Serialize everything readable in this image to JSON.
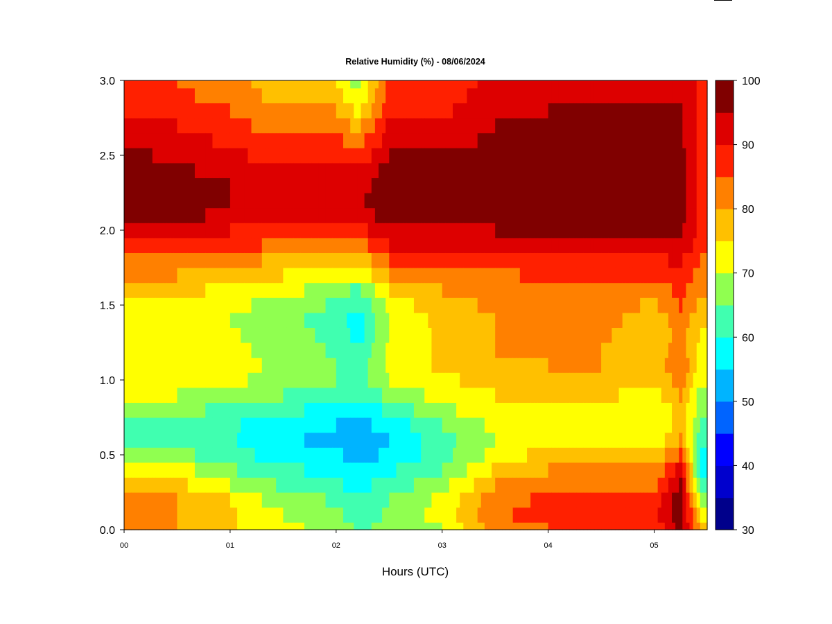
{
  "chart_data": {
    "type": "heatmap",
    "subtype": "filled-contour",
    "title": "Relative Humidity (%) - 08/06/2024",
    "xlabel": "Hours (UTC)",
    "ylabel": "",
    "x_unit": "hours",
    "xlim": [
      0,
      5.5
    ],
    "ylim": [
      0.0,
      3.0
    ],
    "x_ticks": [
      {
        "value": 0,
        "label": "00"
      },
      {
        "value": 1,
        "label": "01"
      },
      {
        "value": 2,
        "label": "02"
      },
      {
        "value": 3,
        "label": "03"
      },
      {
        "value": 4,
        "label": "04"
      },
      {
        "value": 5,
        "label": "05"
      }
    ],
    "y_ticks": [
      {
        "value": 0.0,
        "label": "0.0"
      },
      {
        "value": 0.5,
        "label": "0.5"
      },
      {
        "value": 1.0,
        "label": "1.0"
      },
      {
        "value": 1.5,
        "label": "1.5"
      },
      {
        "value": 2.0,
        "label": "2.0"
      },
      {
        "value": 2.5,
        "label": "2.5"
      },
      {
        "value": 3.0,
        "label": "3.0"
      }
    ],
    "colorbar": {
      "levels": [
        30,
        35,
        40,
        45,
        50,
        55,
        60,
        65,
        70,
        75,
        80,
        85,
        90,
        95,
        100
      ],
      "colors": [
        "#00008b",
        "#0000cd",
        "#0000ff",
        "#0064ff",
        "#00b4ff",
        "#00ffff",
        "#40ffb0",
        "#90ff50",
        "#ffff00",
        "#ffc000",
        "#ff8000",
        "#ff2000",
        "#dd0000",
        "#800000"
      ],
      "tick_labels": [
        {
          "value": 30,
          "label": "30"
        },
        {
          "value": 40,
          "label": "40"
        },
        {
          "value": 50,
          "label": "50"
        },
        {
          "value": 60,
          "label": "60"
        },
        {
          "value": 70,
          "label": "70"
        },
        {
          "value": 80,
          "label": "80"
        },
        {
          "value": 90,
          "label": "90"
        },
        {
          "value": 100,
          "label": "100"
        }
      ]
    },
    "profile_heights_km": [
      0.0,
      0.1,
      0.2,
      0.3,
      0.4,
      0.5,
      0.6,
      0.7,
      0.8,
      0.9,
      1.0,
      1.1,
      1.2,
      1.3,
      1.4,
      1.5,
      1.6,
      1.7,
      1.8,
      1.9,
      2.0,
      2.1,
      2.2,
      2.3,
      2.4,
      2.5,
      2.6,
      2.7,
      2.8,
      2.9,
      3.0
    ],
    "profiles": [
      {
        "hour": 0.0,
        "rh": [
          80,
          80,
          80,
          76,
          72,
          68,
          64,
          64,
          66,
          70,
          73,
          74,
          74,
          73,
          73,
          74,
          77,
          80,
          84,
          88,
          94,
          97,
          97,
          97,
          97,
          96,
          95,
          93,
          90,
          88,
          87
        ]
      },
      {
        "hour": 0.5,
        "rh": [
          80,
          80,
          80,
          76,
          72,
          66,
          63,
          63,
          66,
          70,
          72,
          73,
          73,
          72,
          72,
          73,
          76,
          80,
          84,
          88,
          93,
          96,
          97,
          97,
          96,
          94,
          92,
          90,
          88,
          86,
          85
        ]
      },
      {
        "hour": 1.0,
        "rh": [
          76,
          76,
          75,
          70,
          66,
          63,
          61,
          61,
          64,
          68,
          71,
          72,
          72,
          71,
          70,
          72,
          74,
          78,
          82,
          86,
          90,
          94,
          95,
          95,
          93,
          91,
          89,
          87,
          85,
          83,
          82
        ]
      },
      {
        "hour": 1.3,
        "rh": [
          72,
          71,
          70,
          66,
          62,
          59,
          57,
          58,
          62,
          66,
          69,
          70,
          69,
          68,
          67,
          69,
          72,
          76,
          80,
          85,
          89,
          93,
          94,
          93,
          91,
          89,
          86,
          84,
          82,
          80,
          79
        ]
      },
      {
        "hour": 1.7,
        "rh": [
          70,
          69,
          67,
          63,
          60,
          57,
          55,
          56,
          60,
          64,
          67,
          68,
          67,
          66,
          65,
          67,
          70,
          74,
          79,
          84,
          89,
          93,
          94,
          93,
          91,
          88,
          85,
          83,
          80,
          78,
          77
        ]
      },
      {
        "hour": 2.0,
        "rh": [
          68,
          67,
          64,
          61,
          58,
          56,
          54,
          55,
          58,
          62,
          65,
          65,
          64,
          63,
          62,
          64,
          67,
          72,
          78,
          83,
          89,
          93,
          95,
          94,
          92,
          89,
          86,
          83,
          80,
          77,
          75
        ]
      },
      {
        "hour": 2.2,
        "rh": [
          64,
          62,
          60,
          58,
          56,
          53,
          51,
          53,
          56,
          60,
          62,
          62,
          60,
          58,
          58,
          60,
          64,
          70,
          76,
          82,
          88,
          92,
          94,
          93,
          90,
          86,
          82,
          78,
          74,
          70,
          68
        ]
      },
      {
        "hour": 2.5,
        "rh": [
          66,
          66,
          65,
          62,
          59,
          56,
          55,
          57,
          61,
          66,
          70,
          71,
          71,
          70,
          70,
          72,
          75,
          80,
          85,
          90,
          95,
          97,
          98,
          98,
          97,
          95,
          93,
          91,
          89,
          88,
          87
        ]
      },
      {
        "hour": 3.0,
        "rh": [
          70,
          72,
          71,
          68,
          65,
          63,
          63,
          65,
          69,
          72,
          74,
          76,
          76,
          76,
          77,
          78,
          80,
          83,
          86,
          90,
          94,
          97,
          98,
          98,
          97,
          95,
          93,
          91,
          89,
          87,
          86
        ]
      },
      {
        "hour": 3.5,
        "rh": [
          82,
          84,
          83,
          80,
          76,
          72,
          70,
          71,
          73,
          75,
          77,
          79,
          80,
          80,
          80,
          81,
          82,
          84,
          87,
          91,
          95,
          97,
          98,
          98,
          98,
          97,
          96,
          95,
          94,
          93,
          92
        ]
      },
      {
        "hour": 4.0,
        "rh": [
          85,
          87,
          86,
          83,
          80,
          77,
          74,
          73,
          74,
          76,
          78,
          80,
          81,
          82,
          83,
          83,
          84,
          86,
          89,
          93,
          97,
          98,
          98,
          98,
          98,
          98,
          97,
          96,
          95,
          94,
          93
        ]
      },
      {
        "hour": 4.5,
        "rh": [
          86,
          88,
          87,
          84,
          81,
          78,
          75,
          74,
          74,
          76,
          78,
          80,
          80,
          81,
          82,
          83,
          84,
          86,
          90,
          94,
          97,
          98,
          98,
          98,
          98,
          98,
          97,
          96,
          95,
          94,
          93
        ]
      },
      {
        "hour": 5.0,
        "rh": [
          86,
          88,
          87,
          84,
          80,
          76,
          72,
          70,
          70,
          73,
          76,
          77,
          76,
          76,
          77,
          79,
          82,
          85,
          89,
          93,
          96,
          98,
          98,
          98,
          98,
          98,
          97,
          96,
          95,
          94,
          93
        ]
      },
      {
        "hour": 5.25,
        "rh": [
          97,
          98,
          98,
          96,
          92,
          86,
          80,
          78,
          78,
          80,
          82,
          84,
          83,
          82,
          83,
          85,
          87,
          89,
          91,
          94,
          96,
          97,
          97,
          97,
          97,
          97,
          96,
          95,
          95,
          94,
          94
        ]
      },
      {
        "hour": 5.45,
        "rh": [
          78,
          72,
          66,
          62,
          58,
          56,
          60,
          64,
          66,
          68,
          70,
          72,
          73,
          74,
          76,
          78,
          80,
          82,
          84,
          86,
          88,
          88,
          88,
          88,
          88,
          88,
          88,
          88,
          88,
          88,
          88
        ]
      },
      {
        "hour": 5.5,
        "rh": [
          75,
          70,
          65,
          62,
          58,
          56,
          60,
          64,
          66,
          68,
          70,
          72,
          73,
          74,
          76,
          78,
          80,
          82,
          84,
          86,
          88,
          88,
          88,
          88,
          88,
          88,
          88,
          88,
          88,
          88,
          88
        ]
      }
    ]
  }
}
